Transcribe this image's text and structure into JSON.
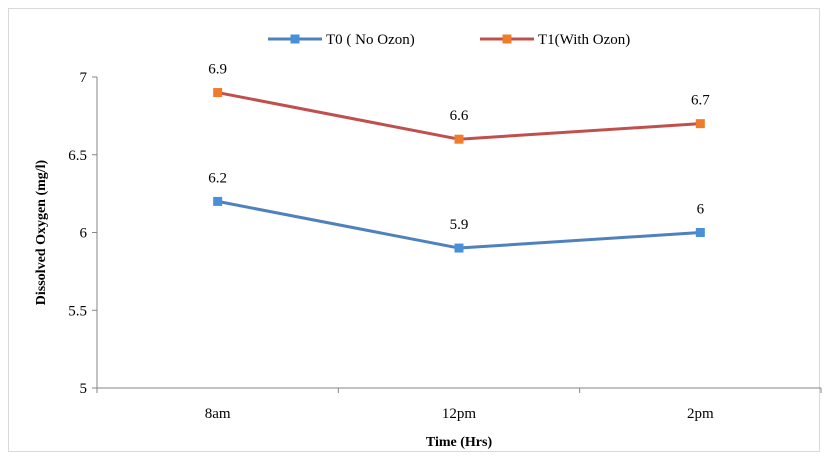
{
  "chart_data": {
    "type": "line",
    "categories": [
      "8am",
      "12pm",
      "2pm"
    ],
    "series": [
      {
        "name": "T0 ( No Ozon)",
        "values": [
          6.2,
          5.9,
          6.0
        ],
        "labels": [
          "6.2",
          "5.9",
          "6"
        ],
        "color": "#4f81bd"
      },
      {
        "name": "T1(With Ozon)",
        "values": [
          6.9,
          6.6,
          6.7
        ],
        "labels": [
          "6.9",
          "6.6",
          "6.7"
        ],
        "color": "#c0504d"
      }
    ],
    "marker_colors": [
      "#4a90d9",
      "#f07c2b"
    ],
    "xlabel": "Time (Hrs)",
    "ylabel": "Dissolved Oxygen (mg/l)",
    "ylim": [
      5,
      7
    ],
    "yticks": [
      "5",
      "5.5",
      "6",
      "6.5",
      "7"
    ],
    "grid": false,
    "legend_position": "top"
  }
}
